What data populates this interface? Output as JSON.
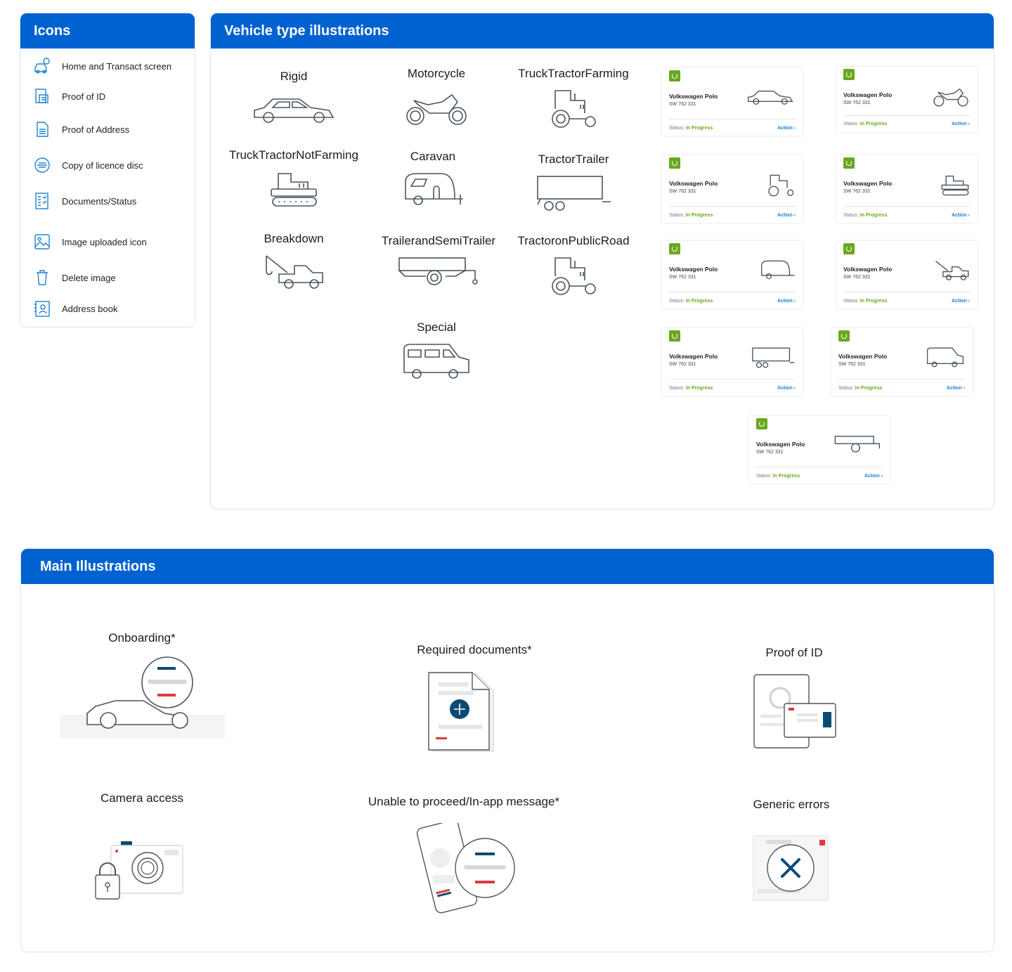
{
  "icons_panel": {
    "title": "Icons",
    "items": [
      {
        "label": "Home and Transact screen",
        "icon": "car-home-icon"
      },
      {
        "label": "Proof of ID",
        "icon": "id-document-icon"
      },
      {
        "label": "Proof of Address",
        "icon": "address-document-icon"
      },
      {
        "label": "Copy of licence disc",
        "icon": "licence-disc-icon"
      },
      {
        "label": "Documents/Status",
        "icon": "document-status-icon"
      },
      {
        "label": "Image uploaded icon",
        "icon": "image-icon"
      },
      {
        "label": "Delete image",
        "icon": "trash-icon"
      },
      {
        "label": "Address book",
        "icon": "address-book-icon"
      }
    ]
  },
  "vehicles_panel": {
    "title": "Vehicle type illustrations",
    "types": [
      "Rigid",
      "Motorcycle",
      "TruckTractorFarming",
      "TruckTractorNotFarming",
      "Caravan",
      "TractorTrailer",
      "Breakdown",
      "TrailerandSemiTrailer",
      "TractoronPublicRoad",
      "Special"
    ],
    "card": {
      "name": "Volkswagen Polo",
      "reg": "SW 762 331",
      "status_label": "Status:",
      "status_value": "In Progress",
      "action": "Action ›"
    }
  },
  "main_panel": {
    "title": "Main Illustrations",
    "items": [
      "Onboarding*",
      "Required documents*",
      "Proof of ID",
      "Camera access",
      "Unable to proceed/In-app message*",
      "Generic errors"
    ]
  },
  "colors": {
    "header": "#0062d0",
    "icon_blue": "#1c82d6",
    "status_green": "#6aa81e",
    "outline": "#4a5561"
  }
}
